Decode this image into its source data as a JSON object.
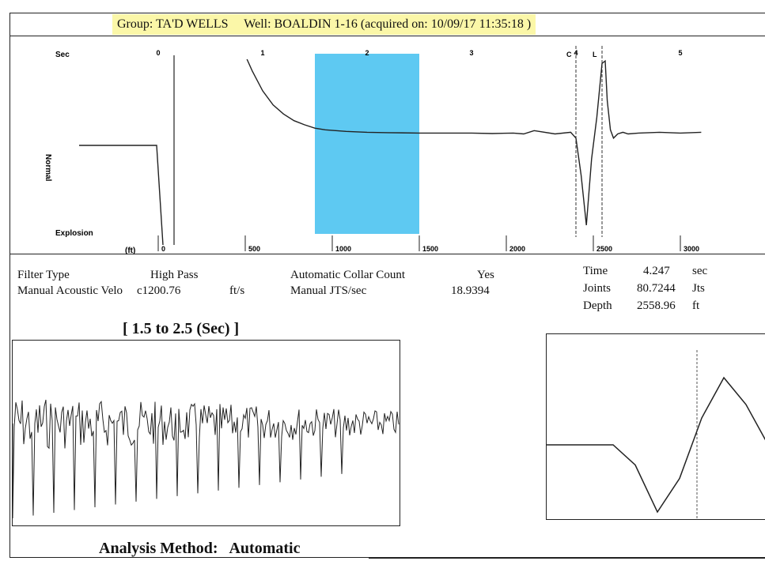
{
  "header": {
    "group_label": "Group:",
    "group_value": "TA'D WELLS",
    "well_label": "Well:",
    "well_value": "BOALDIN 1-16",
    "acquired": "(acquired on: 10/09/17 11:35:18 )"
  },
  "chart_data": [
    {
      "type": "line",
      "title": "",
      "xlabel": "Sec",
      "x_ticks": [
        "0",
        "1",
        "2",
        "3",
        "4",
        "5"
      ],
      "secondary_axis_label": "(ft)",
      "secondary_ticks": [
        "0",
        "500",
        "1000",
        "1500",
        "2000",
        "2500",
        "3000"
      ],
      "left_labels": {
        "vertical": "Normal",
        "bottom": "Explosion"
      },
      "markers": [
        "C",
        "L"
      ],
      "selection_window_sec": [
        1.5,
        2.5
      ],
      "series": [
        {
          "x": [
            0.85,
            0.9,
            1.0,
            1.1,
            1.2,
            1.3,
            1.4,
            1.5,
            1.6,
            1.8,
            2.0,
            2.2,
            2.5,
            2.8,
            3.0,
            3.2,
            3.4,
            3.5,
            3.6,
            3.8,
            3.95,
            4.0,
            4.05,
            4.1,
            4.15,
            4.2,
            4.25,
            4.28,
            4.3,
            4.33,
            4.36,
            4.4,
            4.45,
            4.5,
            4.6,
            4.8,
            5.0,
            5.2
          ],
          "y": [
            1.0,
            0.86,
            0.62,
            0.45,
            0.34,
            0.26,
            0.21,
            0.17,
            0.15,
            0.13,
            0.12,
            0.115,
            0.11,
            0.11,
            0.11,
            0.105,
            0.11,
            0.1,
            0.14,
            0.1,
            0.12,
            0.05,
            -0.4,
            -1.0,
            -0.2,
            0.3,
            0.95,
            0.98,
            0.5,
            0.15,
            0.05,
            0.1,
            0.12,
            0.1,
            0.11,
            0.12,
            0.11,
            0.12
          ]
        }
      ]
    },
    {
      "type": "line",
      "title": "[ 1.5  to  2.5 (Sec) ]",
      "series": [
        {
          "x": [
            1.5,
            2.5
          ],
          "y": [
            0,
            0
          ]
        }
      ]
    },
    {
      "type": "line",
      "title": "",
      "series": [
        {
          "x": [
            0,
            1,
            2,
            3,
            4,
            5,
            6,
            7,
            8,
            9,
            10
          ],
          "y": [
            0.0,
            0.0,
            0.0,
            0.0,
            -0.3,
            -1.0,
            -0.5,
            0.4,
            1.0,
            0.6,
            0.0
          ]
        }
      ]
    }
  ],
  "parameters": {
    "filter_type_label": "Filter Type",
    "filter_type_value": "High Pass",
    "acoustic_velocity_label": "Manual Acoustic Velo",
    "acoustic_velocity_value": "c1200.76",
    "acoustic_velocity_unit": "ft/s",
    "collar_count_label": "Automatic Collar Count",
    "collar_count_value": "Yes",
    "jts_per_sec_label": "Manual JTS/sec",
    "jts_per_sec_value": "18.9394",
    "time_label": "Time",
    "time_value": "4.247",
    "time_unit": "sec",
    "joints_label": "Joints",
    "joints_value": "80.7244",
    "joints_unit": "Jts",
    "depth_label": "Depth",
    "depth_value": "2558.96",
    "depth_unit": "ft"
  },
  "window_title": "[ 1.5  to  2.5 (Sec) ]",
  "footer": {
    "analysis_label": "Analysis Method:",
    "analysis_value": "Automatic"
  },
  "colors": {
    "highlight": "#fbf7a8",
    "selection": "#5ec9f2",
    "trace": "#222222"
  }
}
